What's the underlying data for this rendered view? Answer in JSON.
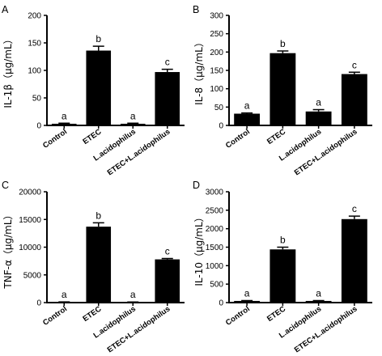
{
  "chart_data": [
    {
      "type": "bar",
      "panel_letter": "A",
      "ylabel": "IL-1β（μg/mL）",
      "categories": [
        "Control",
        "ETEC",
        "L.acidophilus",
        "ETEC+L.acidophilus"
      ],
      "values": [
        3,
        136,
        3,
        97
      ],
      "errors": [
        1,
        8,
        1,
        5
      ],
      "significance": [
        "a",
        "b",
        "a",
        "c"
      ],
      "ylim": [
        0,
        200
      ],
      "yticks": [
        0,
        50,
        100,
        150,
        200
      ],
      "ytick_labels": [
        "0",
        "50",
        "100",
        "150",
        "200"
      ]
    },
    {
      "type": "bar",
      "panel_letter": "B",
      "ylabel": "IL-8（μg/mL）",
      "categories": [
        "Control",
        "ETEC",
        "L.acidophilus",
        "ETEC+L.acidophilus"
      ],
      "values": [
        32,
        197,
        38,
        140
      ],
      "errors": [
        2,
        6,
        5,
        5
      ],
      "significance": [
        "a",
        "b",
        "a",
        "c"
      ],
      "ylim": [
        0,
        300
      ],
      "yticks": [
        0,
        50,
        100,
        150,
        200,
        250,
        300
      ],
      "ytick_labels": [
        "0",
        "50",
        "100",
        "150",
        "200",
        "250",
        "300"
      ]
    },
    {
      "type": "bar",
      "panel_letter": "C",
      "ylabel": "TNF-α（μg/mL）",
      "categories": [
        "Control",
        "ETEC",
        "L.acidophilus",
        "ETEC+L.acidophilus"
      ],
      "values": [
        100,
        13700,
        80,
        7800
      ],
      "errors": [
        30,
        700,
        30,
        150
      ],
      "significance": [
        "a",
        "b",
        "a",
        "c"
      ],
      "ylim": [
        0,
        20000
      ],
      "yticks": [
        0,
        5000,
        10000,
        15000,
        20000
      ],
      "ytick_labels": [
        "0",
        "5000",
        "10000",
        "15000",
        "20000"
      ]
    },
    {
      "type": "bar",
      "panel_letter": "D",
      "ylabel": "IL-10（μg/mL）",
      "categories": [
        "Control",
        "ETEC",
        "L.acidophilus",
        "ETEC+L.acidophilus"
      ],
      "values": [
        45,
        1440,
        45,
        2260
      ],
      "errors": [
        10,
        60,
        10,
        80
      ],
      "significance": [
        "a",
        "b",
        "a",
        "c"
      ],
      "ylim": [
        0,
        3000
      ],
      "yticks": [
        0,
        500,
        1000,
        1500,
        2000,
        2500,
        3000
      ],
      "ytick_labels": [
        "0",
        "500",
        "1000",
        "1500",
        "2000",
        "2500",
        "3000"
      ]
    }
  ]
}
